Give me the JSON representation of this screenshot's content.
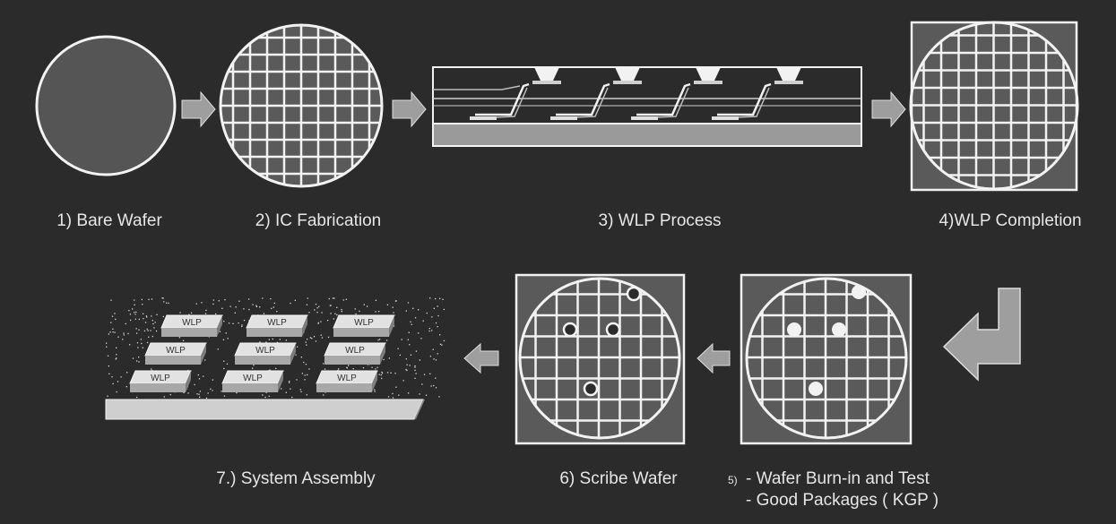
{
  "colors": {
    "background": "#2b2b2b",
    "outline": "#f2f2f2",
    "wafer_fill": "#555555",
    "square_fill": "#5a5a5a",
    "arrow_fill": "#9e9e9e",
    "chip_top": "#e2e2e2",
    "chip_side": "#a8a8a8",
    "board": "#cfcfcf"
  },
  "steps": {
    "bare_wafer": {
      "label": "1) Bare Wafer"
    },
    "ic_fabrication": {
      "label": "2) IC Fabrication"
    },
    "wlp_process": {
      "label": "3) WLP Process"
    },
    "wlp_completion": {
      "label": "4)WLP Completion"
    },
    "burn_in_test": {
      "number": "5)",
      "line1": "- Wafer Burn-in and Test",
      "line2": "- Good Packages ( KGP )"
    },
    "scribe_wafer": {
      "label": "6) Scribe Wafer"
    },
    "system_assembly": {
      "label": "7.) System Assembly"
    }
  },
  "chip_label": "WLP"
}
